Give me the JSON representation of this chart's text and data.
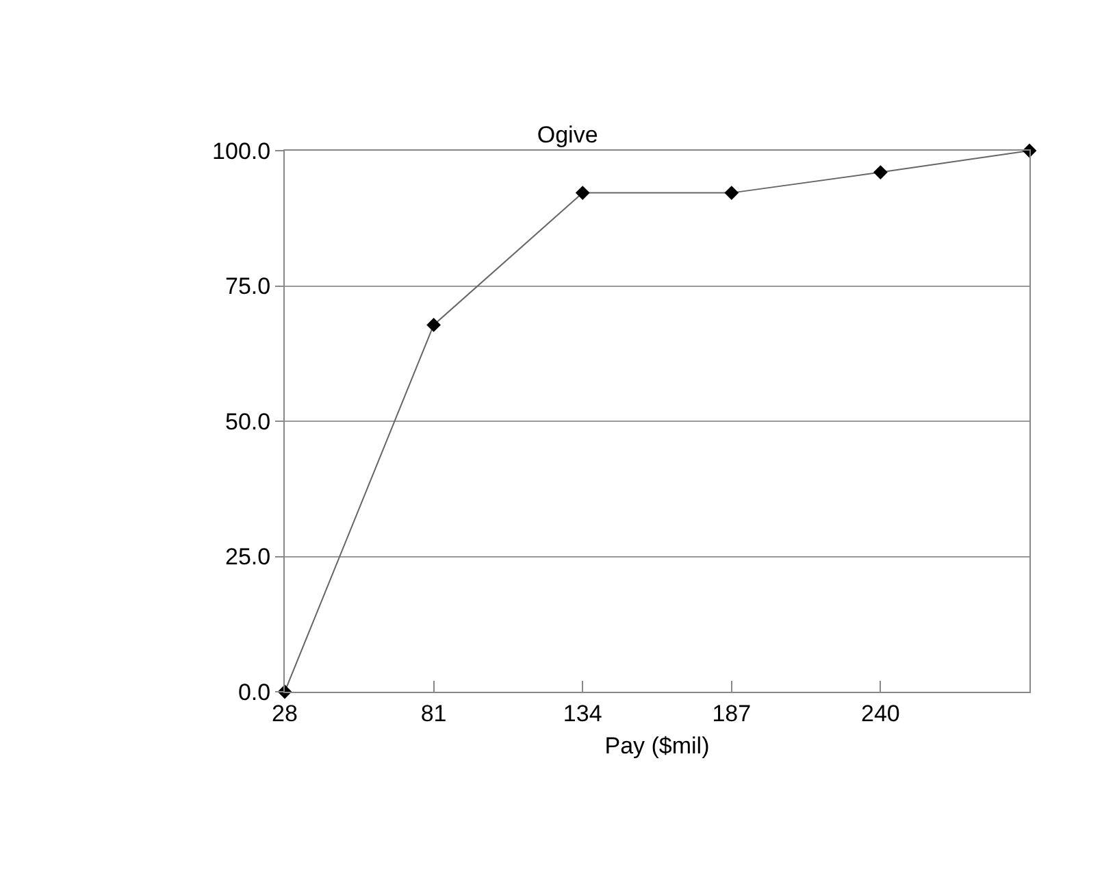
{
  "chart_data": {
    "type": "line",
    "title": "Ogive",
    "xlabel": "Pay ($mil)",
    "x": [
      28,
      81,
      134,
      187,
      240,
      293
    ],
    "series": [
      {
        "color": "#000000",
        "values": [
          0,
          67.8,
          92.2,
          92.2,
          96,
          100
        ]
      }
    ],
    "xlim": [
      28,
      293
    ],
    "xticks": [
      28,
      81,
      134,
      187,
      240,
      {
        "value": 293,
        "label": null
      }
    ],
    "ylim": [
      0,
      100
    ],
    "yticks": [
      {
        "value": 0,
        "label": "0.0"
      },
      {
        "value": 25,
        "label": "25.0"
      },
      {
        "value": 50,
        "label": "50.0"
      },
      {
        "value": 75,
        "label": "75.0"
      },
      {
        "value": 100,
        "label": "100.0"
      }
    ],
    "grid": "y",
    "marker": "diamond",
    "line_style": "solid"
  }
}
